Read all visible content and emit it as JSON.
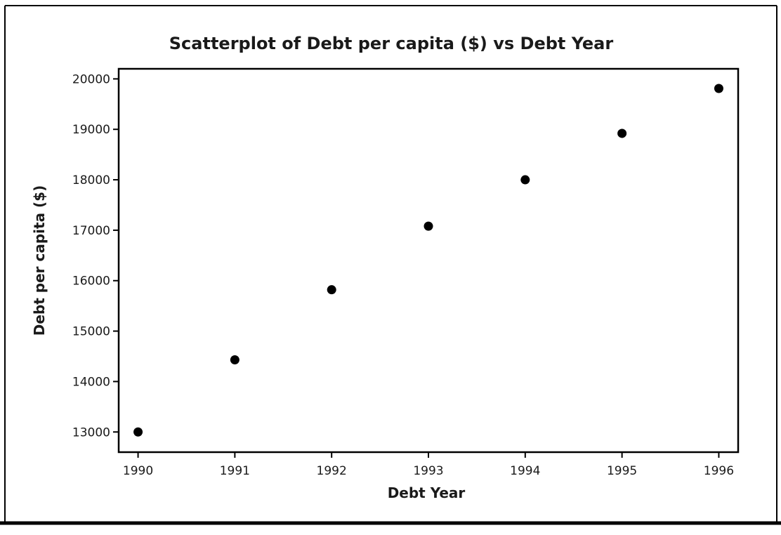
{
  "chart_data": {
    "type": "scatter",
    "title": "Scatterplot of Debt per capita ($) vs Debt Year",
    "xlabel": "Debt Year",
    "ylabel": "Debt per capita ($)",
    "x": [
      1990,
      1991,
      1992,
      1993,
      1994,
      1995,
      1996
    ],
    "y": [
      13000,
      14430,
      15820,
      17080,
      18000,
      18920,
      19810
    ],
    "xlim": [
      1989.8,
      1996.2
    ],
    "ylim": [
      12600,
      20200
    ],
    "xticks": [
      "1990",
      "1991",
      "1992",
      "1993",
      "1994",
      "1995",
      "1996"
    ],
    "yticks": [
      "13000",
      "14000",
      "15000",
      "16000",
      "17000",
      "18000",
      "19000",
      "20000"
    ],
    "grid": false,
    "legend": "none",
    "marker_color": "#000000"
  }
}
